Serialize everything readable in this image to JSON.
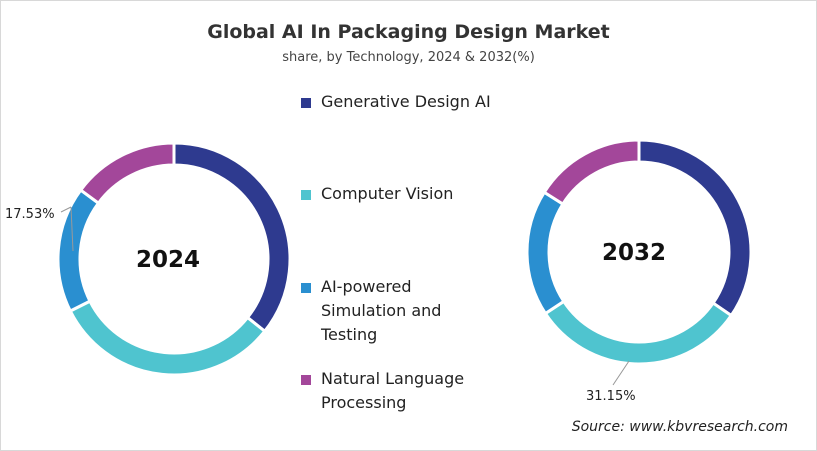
{
  "chart_data": [
    {
      "type": "pie",
      "variant": "donut",
      "center_label": "2024",
      "categories": [
        "Generative Design AI",
        "Computer Vision",
        "AI-powered Simulation and Testing",
        "Natural Language Processing"
      ],
      "values": [
        35.7,
        31.9,
        17.53,
        14.87
      ],
      "labeled": {
        "AI-powered Simulation and Testing": "17.53%"
      }
    },
    {
      "type": "pie",
      "variant": "donut",
      "center_label": "2032",
      "categories": [
        "Generative Design AI",
        "Computer Vision",
        "AI-powered Simulation and Testing",
        "Natural Language Processing"
      ],
      "values": [
        34.6,
        31.15,
        18.2,
        16.05
      ],
      "labeled": {
        "Computer Vision": "31.15%"
      }
    }
  ],
  "title": "Global AI In Packaging Design Market",
  "subtitle": "share, by Technology, 2024 & 2032(%)",
  "legend": [
    {
      "label": "Generative Design AI",
      "color": "#2e3a8f"
    },
    {
      "label": "Computer Vision",
      "color": "#4fc4cf"
    },
    {
      "label": "AI-powered Simulation and Testing",
      "color": "#2a8fd0"
    },
    {
      "label": "Natural Language Processing",
      "color": "#a3479a"
    }
  ],
  "labels": {
    "l2024": "17.53%",
    "l2032": "31.15%"
  },
  "source": "Source: www.kbvresearch.com"
}
